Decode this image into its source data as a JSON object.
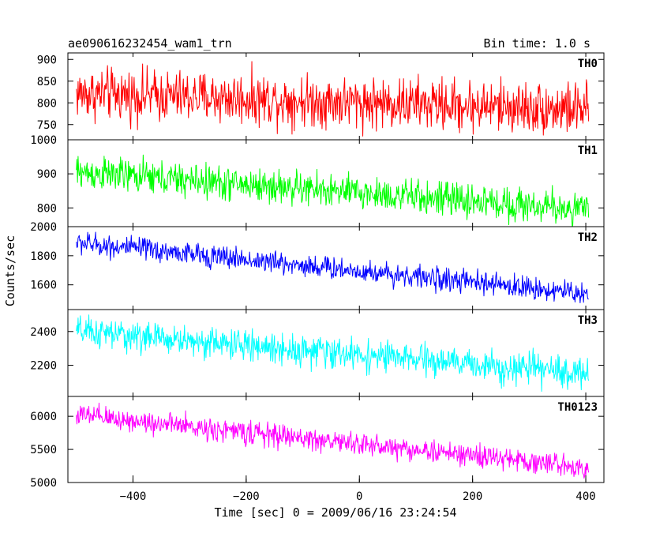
{
  "header": {
    "title": "ae090616232454_wam1_trn",
    "bin_time": "Bin time: 1.0 s"
  },
  "chart_data": {
    "type": "line",
    "ylabel": "Counts/sec",
    "xlabel": "Time [sec] 0 = 2009/06/16 23:24:54",
    "xlim": [
      -515,
      432
    ],
    "xticks": [
      -400,
      -200,
      0,
      200,
      400
    ],
    "panels": [
      {
        "name": "TH0",
        "color": "#ff0000",
        "ylim": [
          715,
          915
        ],
        "yticks": [
          750,
          800,
          850,
          900
        ],
        "trend": {
          "x": [
            -500,
            400
          ],
          "y": [
            822,
            785
          ]
        },
        "noise_amplitude": 38,
        "ylabel": "",
        "values": []
      },
      {
        "name": "TH1",
        "color": "#00ff00",
        "ylim": [
          745,
          1000
        ],
        "yticks": [
          800,
          900,
          1000
        ],
        "trend": {
          "x": [
            -500,
            400
          ],
          "y": [
            905,
            795
          ]
        },
        "noise_amplitude": 32,
        "ylabel": "",
        "values": []
      },
      {
        "name": "TH2",
        "color": "#0000ff",
        "ylim": [
          1430,
          2000
        ],
        "yticks": [
          1600,
          1800,
          2000
        ],
        "trend": {
          "x": [
            -500,
            400
          ],
          "y": [
            1890,
            1540
          ]
        },
        "noise_amplitude": 50,
        "ylabel": "",
        "values": []
      },
      {
        "name": "TH3",
        "color": "#00ffff",
        "ylim": [
          2015,
          2530
        ],
        "yticks": [
          2200,
          2400
        ],
        "trend": {
          "x": [
            -500,
            400
          ],
          "y": [
            2400,
            2150
          ]
        },
        "noise_amplitude": 58,
        "ylabel": "",
        "values": []
      },
      {
        "name": "TH0123",
        "color": "#ff00ff",
        "ylim": [
          5000,
          6300
        ],
        "yticks": [
          5000,
          5500,
          6000
        ],
        "trend": {
          "x": [
            -500,
            400
          ],
          "y": [
            6020,
            5230
          ]
        },
        "noise_amplitude": 110,
        "ylabel": "",
        "values": []
      }
    ],
    "t_start": -500,
    "t_end": 405,
    "bin": 1.0,
    "grid": false
  }
}
